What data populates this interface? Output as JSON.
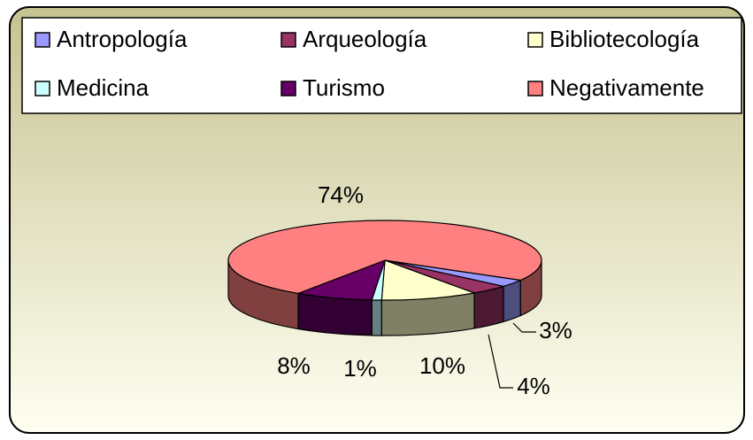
{
  "chart_data": {
    "type": "pie3d",
    "categories": [
      "Antropología",
      "Arqueología",
      "Bibliotecología",
      "Medicina",
      "Turismo",
      "Negativamente"
    ],
    "values": [
      3,
      4,
      10,
      1,
      8,
      74
    ],
    "value_labels": [
      "3%",
      "4%",
      "10%",
      "1%",
      "8%",
      "74%"
    ],
    "colors": [
      "#9999ff",
      "#993366",
      "#ffffcc",
      "#ccffff",
      "#660066",
      "#ff8080"
    ],
    "legend": "top"
  }
}
